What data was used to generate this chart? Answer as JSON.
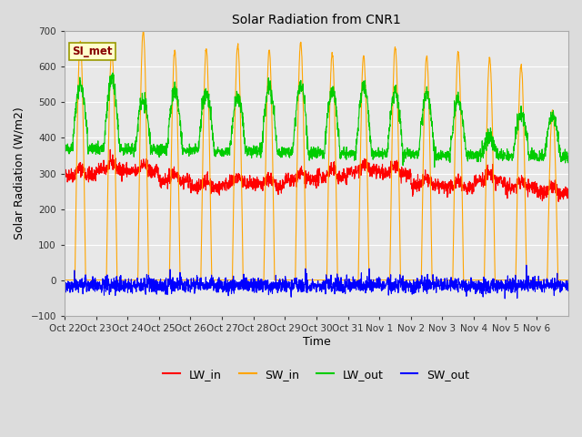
{
  "title": "Solar Radiation from CNR1",
  "xlabel": "Time",
  "ylabel": "Solar Radiation (W/m2)",
  "ylim": [
    -100,
    700
  ],
  "yticks": [
    -100,
    0,
    100,
    200,
    300,
    400,
    500,
    600,
    700
  ],
  "x_tick_labels": [
    "Oct 22",
    "Oct 23",
    "Oct 24",
    "Oct 25",
    "Oct 26",
    "Oct 27",
    "Oct 28",
    "Oct 29",
    "Oct 30",
    "Oct 31",
    "Nov 1",
    "Nov 2",
    "Nov 3",
    "Nov 4",
    "Nov 5",
    "Nov 6"
  ],
  "legend_labels": [
    "LW_in",
    "SW_in",
    "LW_out",
    "SW_out"
  ],
  "legend_colors": [
    "#ff0000",
    "#ffa500",
    "#00cc00",
    "#0000ff"
  ],
  "annotation_text": "SI_met",
  "annotation_color": "#880000",
  "annotation_bg": "#ffffcc",
  "annotation_border": "#999900",
  "fig_bg_color": "#dcdcdc",
  "plot_bg_color": "#e8e8e8",
  "grid_color": "#ffffff",
  "line_width": 0.8,
  "num_days": 16,
  "seed": 42,
  "sw_in_day_peaks": [
    670,
    648,
    700,
    645,
    648,
    660,
    645,
    668,
    635,
    632,
    655,
    630,
    640,
    625,
    605,
    480
  ],
  "lw_out_day_peaks": [
    555,
    565,
    510,
    530,
    530,
    520,
    545,
    550,
    535,
    545,
    530,
    525,
    510,
    400,
    468,
    465
  ],
  "lw_in_day_base": [
    295,
    310,
    305,
    280,
    260,
    270,
    265,
    280,
    290,
    305,
    300,
    265,
    260,
    280,
    260,
    245
  ]
}
